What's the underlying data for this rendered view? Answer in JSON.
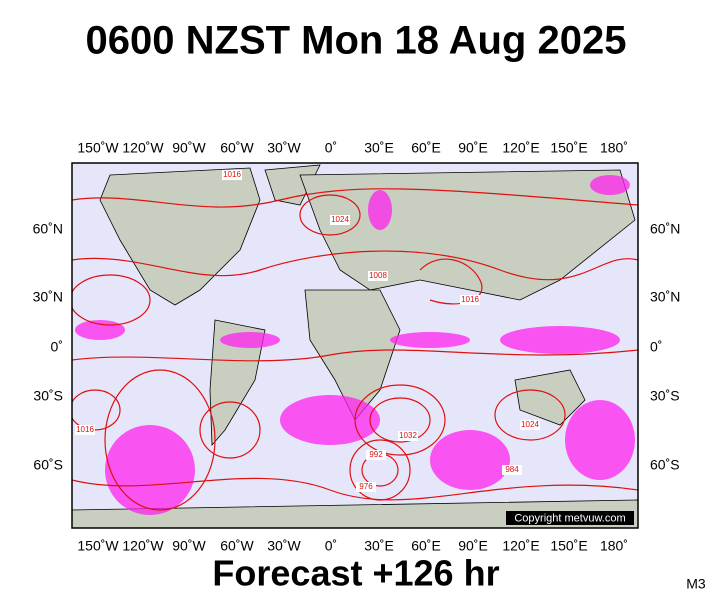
{
  "header": {
    "title": "0600 NZST Mon 18 Aug 2025"
  },
  "map": {
    "longitude_labels": [
      "150˚W",
      "120˚W",
      "90˚W",
      "60˚W",
      "30˚W",
      "0˚",
      "30˚E",
      "60˚E",
      "90˚E",
      "120˚E",
      "150˚E",
      "180˚"
    ],
    "latitude_labels": [
      "60˚N",
      "30˚N",
      "0˚",
      "30˚S",
      "60˚S"
    ],
    "isobar_labels": [
      "1016",
      "1024",
      "1008",
      "1016",
      "1024",
      "992",
      "976",
      "984",
      "1032",
      "1016"
    ],
    "copyright": "Copyright metvuw.com"
  },
  "footer": {
    "forecast": "Forecast +126 hr",
    "code": "M3"
  }
}
